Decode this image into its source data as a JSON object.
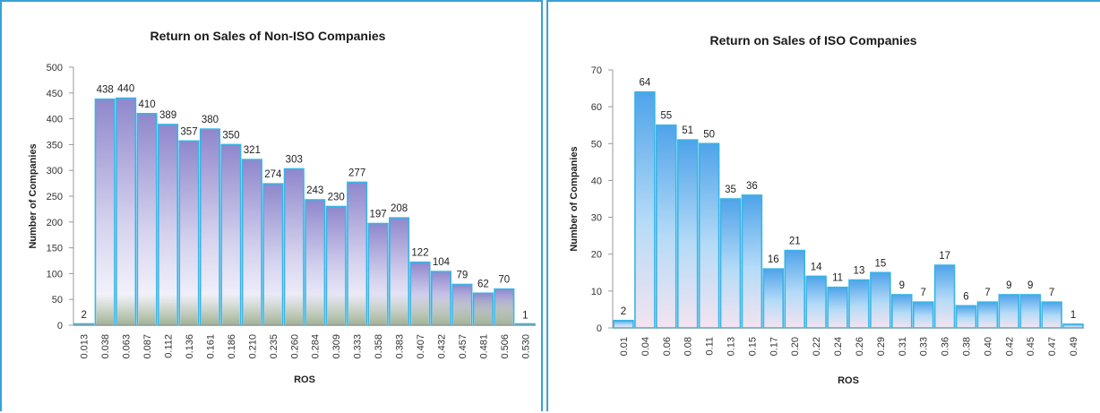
{
  "chart_data": [
    {
      "type": "bar",
      "title": "Return on Sales of Non-ISO Companies",
      "xlabel": "ROS",
      "ylabel": "Number of Companies",
      "ylim": [
        0,
        500
      ],
      "yticks": [
        0,
        50,
        100,
        150,
        200,
        250,
        300,
        350,
        400,
        450,
        500
      ],
      "categories": [
        "0.013",
        "0.038",
        "0.063",
        "0.087",
        "0.112",
        "0.136",
        "0.161",
        "0.186",
        "0.210",
        "0.235",
        "0.260",
        "0.284",
        "0.309",
        "0.333",
        "0.358",
        "0.383",
        "0.407",
        "0.432",
        "0.457",
        "0.481",
        "0.506",
        "0.530"
      ],
      "values": [
        2,
        438,
        440,
        410,
        389,
        357,
        380,
        350,
        321,
        274,
        303,
        243,
        230,
        277,
        197,
        208,
        122,
        104,
        79,
        62,
        70,
        1
      ],
      "grid": false,
      "colors": {
        "top": "#8f87cc",
        "mid": "#d5d2ee",
        "bottom": "#ffffff",
        "base": "#8fa382",
        "edge": "#39b4e6"
      }
    },
    {
      "type": "bar",
      "title": "Return on Sales of ISO Companies",
      "xlabel": "ROS",
      "ylabel": "Number of Companies",
      "ylim": [
        0,
        70
      ],
      "yticks": [
        0,
        10,
        20,
        30,
        40,
        50,
        60,
        70
      ],
      "categories": [
        "0.01",
        "0.04",
        "0.06",
        "0.08",
        "0.11",
        "0.13",
        "0.15",
        "0.17",
        "0.20",
        "0.22",
        "0.24",
        "0.26",
        "0.29",
        "0.31",
        "0.33",
        "0.36",
        "0.38",
        "0.40",
        "0.42",
        "0.45",
        "0.47",
        "0.49"
      ],
      "values": [
        2,
        64,
        55,
        51,
        50,
        35,
        36,
        16,
        21,
        14,
        11,
        13,
        15,
        9,
        7,
        17,
        6,
        7,
        9,
        9,
        7,
        1
      ],
      "grid": false,
      "colors": {
        "top": "#4fa3ea",
        "mid": "#b5dbf7",
        "bottom": "#f3e4f0",
        "edge": "#39b4e6"
      }
    }
  ]
}
